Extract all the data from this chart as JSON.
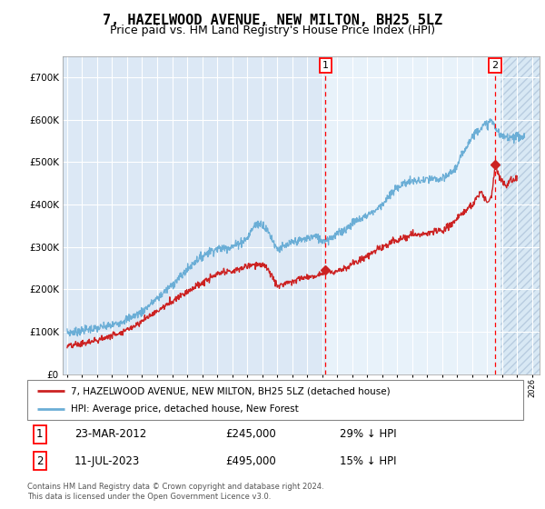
{
  "title": "7, HAZELWOOD AVENUE, NEW MILTON, BH25 5LZ",
  "subtitle": "Price paid vs. HM Land Registry's House Price Index (HPI)",
  "ylim": [
    0,
    750000
  ],
  "yticks": [
    0,
    100000,
    200000,
    300000,
    400000,
    500000,
    600000,
    700000
  ],
  "ytick_labels": [
    "£0",
    "£100K",
    "£200K",
    "£300K",
    "£400K",
    "£500K",
    "£600K",
    "£700K"
  ],
  "xlim_start": 1994.7,
  "xlim_end": 2026.5,
  "xticks": [
    1995,
    1996,
    1997,
    1998,
    1999,
    2000,
    2001,
    2002,
    2003,
    2004,
    2005,
    2006,
    2007,
    2008,
    2009,
    2010,
    2011,
    2012,
    2013,
    2014,
    2015,
    2016,
    2017,
    2018,
    2019,
    2020,
    2021,
    2022,
    2023,
    2024,
    2025,
    2026
  ],
  "hpi_color": "#6baed6",
  "price_color": "#cc2222",
  "marker1_x": 2012.23,
  "marker1_y": 245000,
  "marker1_label": "1",
  "marker1_date": "23-MAR-2012",
  "marker1_price": "£245,000",
  "marker1_hpi": "29% ↓ HPI",
  "marker2_x": 2023.54,
  "marker2_y": 495000,
  "marker2_label": "2",
  "marker2_date": "11-JUL-2023",
  "marker2_price": "£495,000",
  "marker2_hpi": "15% ↓ HPI",
  "legend_line1": "7, HAZELWOOD AVENUE, NEW MILTON, BH25 5LZ (detached house)",
  "legend_line2": "HPI: Average price, detached house, New Forest",
  "footer1": "Contains HM Land Registry data © Crown copyright and database right 2024.",
  "footer2": "This data is licensed under the Open Government Licence v3.0.",
  "bg_plot": "#dce8f5",
  "bg_light": "#e8f2fa",
  "grid_color": "#ffffff",
  "title_fontsize": 11,
  "subtitle_fontsize": 9
}
